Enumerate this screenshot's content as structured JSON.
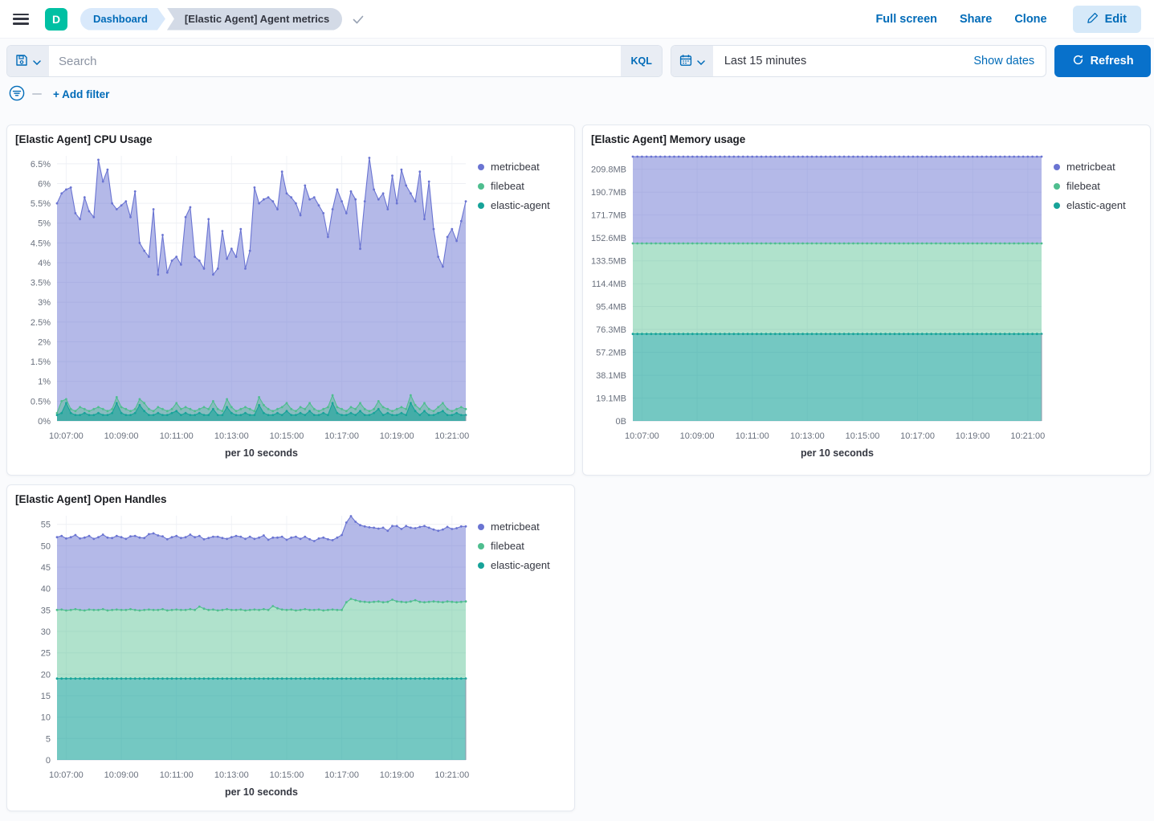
{
  "header": {
    "app_initial": "D",
    "breadcrumbs": [
      "Dashboard",
      "[Elastic Agent] Agent metrics"
    ],
    "actions": [
      "Full screen",
      "Share",
      "Clone"
    ],
    "edit_label": "Edit"
  },
  "query_bar": {
    "search_placeholder": "Search",
    "kql_label": "KQL",
    "time_range": "Last 15 minutes",
    "show_dates_label": "Show dates",
    "refresh_label": "Refresh"
  },
  "filter_bar": {
    "add_filter_label": "+ Add filter"
  },
  "colors": {
    "accent_blue": "#006bb8",
    "refresh_blue": "#0871cb",
    "avatar_teal": "#00c0a3",
    "metricbeat": "#6a74d2",
    "filebeat": "#4fbe8f",
    "elastic_agent": "#17a399"
  },
  "chart_data": [
    {
      "type": "area",
      "stacked": false,
      "title": "[Elastic Agent] CPU Usage",
      "xlabel": "per 10 seconds",
      "x_count": 90,
      "y_max": 6.7,
      "y_ticks": [
        {
          "v": 0,
          "label": "0%"
        },
        {
          "v": 0.5,
          "label": "0.5%"
        },
        {
          "v": 1,
          "label": "1%"
        },
        {
          "v": 1.5,
          "label": "1.5%"
        },
        {
          "v": 2,
          "label": "2%"
        },
        {
          "v": 2.5,
          "label": "2.5%"
        },
        {
          "v": 3,
          "label": "3%"
        },
        {
          "v": 3.5,
          "label": "3.5%"
        },
        {
          "v": 4,
          "label": "4%"
        },
        {
          "v": 4.5,
          "label": "4.5%"
        },
        {
          "v": 5,
          "label": "5%"
        },
        {
          "v": 5.5,
          "label": "5.5%"
        },
        {
          "v": 6,
          "label": "6%"
        },
        {
          "v": 6.5,
          "label": "6.5%"
        }
      ],
      "x_ticks": [
        {
          "i": 2,
          "label": "10:07:00"
        },
        {
          "i": 14,
          "label": "10:09:00"
        },
        {
          "i": 26,
          "label": "10:11:00"
        },
        {
          "i": 38,
          "label": "10:13:00"
        },
        {
          "i": 50,
          "label": "10:15:00"
        },
        {
          "i": 62,
          "label": "10:17:00"
        },
        {
          "i": 74,
          "label": "10:19:00"
        },
        {
          "i": 86,
          "label": "10:21:00"
        }
      ],
      "series": [
        {
          "name": "metricbeat",
          "color": "#6a74d2",
          "fill_opacity": 0.5,
          "values": [
            5.5,
            5.75,
            5.85,
            5.9,
            5.25,
            5.1,
            5.65,
            5.3,
            5.15,
            6.6,
            6.05,
            6.35,
            5.5,
            5.35,
            5.45,
            5.55,
            5.15,
            5.8,
            4.5,
            4.3,
            4.15,
            5.35,
            3.7,
            4.7,
            3.75,
            4.05,
            4.15,
            3.95,
            5.15,
            5.4,
            4.15,
            4.05,
            3.85,
            5.1,
            3.7,
            3.85,
            4.8,
            4.1,
            4.35,
            4.15,
            4.85,
            3.85,
            4.3,
            5.9,
            5.5,
            5.6,
            5.65,
            5.55,
            5.35,
            6.3,
            5.75,
            5.65,
            5.5,
            5.2,
            5.95,
            5.6,
            5.65,
            5.45,
            5.25,
            4.65,
            5.35,
            5.85,
            5.55,
            5.25,
            5.8,
            5.6,
            4.35,
            5.55,
            6.65,
            5.85,
            5.6,
            5.75,
            5.35,
            6.2,
            5.5,
            6.35,
            5.95,
            5.75,
            5.55,
            6.3,
            5.1,
            6.05,
            4.85,
            4.15,
            3.9,
            4.65,
            4.85,
            4.55,
            5.05,
            5.55
          ]
        },
        {
          "name": "filebeat",
          "color": "#4fbe8f",
          "fill_opacity": 0.45,
          "values": [
            0.2,
            0.5,
            0.55,
            0.3,
            0.25,
            0.35,
            0.3,
            0.25,
            0.3,
            0.35,
            0.3,
            0.25,
            0.3,
            0.6,
            0.35,
            0.3,
            0.25,
            0.3,
            0.55,
            0.45,
            0.3,
            0.25,
            0.35,
            0.3,
            0.25,
            0.3,
            0.45,
            0.3,
            0.35,
            0.3,
            0.25,
            0.3,
            0.35,
            0.3,
            0.5,
            0.3,
            0.25,
            0.55,
            0.35,
            0.25,
            0.3,
            0.35,
            0.3,
            0.25,
            0.6,
            0.4,
            0.3,
            0.25,
            0.3,
            0.35,
            0.45,
            0.3,
            0.25,
            0.35,
            0.3,
            0.45,
            0.3,
            0.25,
            0.3,
            0.35,
            0.65,
            0.35,
            0.3,
            0.25,
            0.35,
            0.3,
            0.45,
            0.3,
            0.25,
            0.3,
            0.5,
            0.35,
            0.3,
            0.25,
            0.3,
            0.35,
            0.3,
            0.65,
            0.4,
            0.3,
            0.45,
            0.3,
            0.25,
            0.35,
            0.45,
            0.3,
            0.25,
            0.3,
            0.35,
            0.3
          ]
        },
        {
          "name": "elastic-agent",
          "color": "#17a399",
          "fill_opacity": 0.6,
          "values": [
            0.15,
            0.2,
            0.45,
            0.2,
            0.15,
            0.15,
            0.2,
            0.15,
            0.15,
            0.2,
            0.15,
            0.15,
            0.2,
            0.45,
            0.2,
            0.15,
            0.15,
            0.2,
            0.4,
            0.25,
            0.15,
            0.15,
            0.2,
            0.15,
            0.15,
            0.2,
            0.25,
            0.15,
            0.2,
            0.15,
            0.15,
            0.2,
            0.15,
            0.15,
            0.3,
            0.15,
            0.15,
            0.35,
            0.2,
            0.15,
            0.15,
            0.2,
            0.15,
            0.15,
            0.4,
            0.2,
            0.15,
            0.15,
            0.2,
            0.15,
            0.25,
            0.15,
            0.15,
            0.2,
            0.15,
            0.25,
            0.15,
            0.15,
            0.2,
            0.15,
            0.45,
            0.2,
            0.15,
            0.15,
            0.2,
            0.15,
            0.25,
            0.15,
            0.15,
            0.2,
            0.3,
            0.15,
            0.2,
            0.15,
            0.15,
            0.2,
            0.15,
            0.45,
            0.25,
            0.15,
            0.25,
            0.15,
            0.15,
            0.2,
            0.25,
            0.15,
            0.15,
            0.2,
            0.15,
            0.15
          ]
        }
      ]
    },
    {
      "type": "area",
      "stacked": true,
      "title": "[Elastic Agent] Memory usage",
      "xlabel": "per 10 seconds",
      "x_count": 90,
      "y_max": 221,
      "y_ticks": [
        {
          "v": 0,
          "label": "0B"
        },
        {
          "v": 19.1,
          "label": "19.1MB"
        },
        {
          "v": 38.1,
          "label": "38.1MB"
        },
        {
          "v": 57.2,
          "label": "57.2MB"
        },
        {
          "v": 76.3,
          "label": "76.3MB"
        },
        {
          "v": 95.4,
          "label": "95.4MB"
        },
        {
          "v": 114.4,
          "label": "114.4MB"
        },
        {
          "v": 133.5,
          "label": "133.5MB"
        },
        {
          "v": 152.6,
          "label": "152.6MB"
        },
        {
          "v": 171.7,
          "label": "171.7MB"
        },
        {
          "v": 190.7,
          "label": "190.7MB"
        },
        {
          "v": 209.8,
          "label": "209.8MB"
        }
      ],
      "x_ticks": [
        {
          "i": 2,
          "label": "10:07:00"
        },
        {
          "i": 14,
          "label": "10:09:00"
        },
        {
          "i": 26,
          "label": "10:11:00"
        },
        {
          "i": 38,
          "label": "10:13:00"
        },
        {
          "i": 50,
          "label": "10:15:00"
        },
        {
          "i": 62,
          "label": "10:17:00"
        },
        {
          "i": 74,
          "label": "10:19:00"
        },
        {
          "i": 86,
          "label": "10:21:00"
        }
      ],
      "series": [
        {
          "name": "metricbeat",
          "color": "#6a74d2",
          "fill_opacity": 0.5,
          "values": 72.3
        },
        {
          "name": "filebeat",
          "color": "#4fbe8f",
          "fill_opacity": 0.45,
          "values": 75.5
        },
        {
          "name": "elastic-agent",
          "color": "#17a399",
          "fill_opacity": 0.6,
          "values": 72.5
        }
      ]
    },
    {
      "type": "area",
      "stacked": true,
      "title": "[Elastic Agent] Open Handles",
      "xlabel": "per 10 seconds",
      "x_count": 90,
      "y_max": 57,
      "y_ticks": [
        {
          "v": 0,
          "label": "0"
        },
        {
          "v": 5,
          "label": "5"
        },
        {
          "v": 10,
          "label": "10"
        },
        {
          "v": 15,
          "label": "15"
        },
        {
          "v": 20,
          "label": "20"
        },
        {
          "v": 25,
          "label": "25"
        },
        {
          "v": 30,
          "label": "30"
        },
        {
          "v": 35,
          "label": "35"
        },
        {
          "v": 40,
          "label": "40"
        },
        {
          "v": 45,
          "label": "45"
        },
        {
          "v": 50,
          "label": "50"
        },
        {
          "v": 55,
          "label": "55"
        }
      ],
      "x_ticks": [
        {
          "i": 2,
          "label": "10:07:00"
        },
        {
          "i": 14,
          "label": "10:09:00"
        },
        {
          "i": 26,
          "label": "10:11:00"
        },
        {
          "i": 38,
          "label": "10:13:00"
        },
        {
          "i": 50,
          "label": "10:15:00"
        },
        {
          "i": 62,
          "label": "10:17:00"
        },
        {
          "i": 74,
          "label": "10:19:00"
        },
        {
          "i": 86,
          "label": "10:21:00"
        }
      ],
      "series": [
        {
          "name": "metricbeat",
          "color": "#6a74d2",
          "fill_opacity": 0.5,
          "values": [
            17,
            17.2,
            16.8,
            17,
            17.3,
            16.7,
            17,
            17.2,
            16.6,
            17,
            17.4,
            17,
            16.8,
            17.2,
            17,
            16.6,
            17,
            17.3,
            17,
            16.8,
            17.6,
            17.9,
            17.4,
            17,
            16.6,
            17,
            17.2,
            16.8,
            17,
            17.4,
            17,
            16.5,
            16.2,
            16.8,
            17,
            17.2,
            16.8,
            16.4,
            17,
            17.3,
            17,
            16.7,
            17.1,
            16.5,
            16.9,
            17.2,
            16.4,
            16,
            16.5,
            17,
            16.4,
            16.8,
            17.2,
            16.6,
            16.9,
            16.5,
            16.1,
            16.6,
            17,
            16.5,
            16.2,
            16.9,
            17.5,
            18.6,
            19.3,
            18.3,
            17.8,
            17.6,
            17.5,
            17.3,
            17,
            17.4,
            16.6,
            17.2,
            17.6,
            17,
            17.8,
            17.2,
            16.8,
            17.5,
            17.8,
            17.3,
            16.8,
            16.6,
            17,
            17.4,
            17,
            17.3,
            17.6,
            17.5
          ]
        },
        {
          "name": "filebeat",
          "color": "#4fbe8f",
          "fill_opacity": 0.45,
          "values": [
            16,
            16.1,
            15.9,
            16,
            16.2,
            16,
            15.9,
            16.1,
            16,
            16,
            16.2,
            15.9,
            16,
            16.1,
            16,
            16,
            16.2,
            16,
            15.9,
            16,
            16.1,
            16,
            16,
            16.2,
            15.9,
            16,
            16.1,
            16,
            16,
            16.2,
            16,
            16.8,
            16.3,
            16,
            16.1,
            15.9,
            16,
            16.2,
            16,
            16,
            16.1,
            15.9,
            16,
            16.1,
            16,
            16.2,
            16,
            16.9,
            16.4,
            16.1,
            16,
            16.1,
            15.9,
            16,
            16.2,
            16,
            16,
            16.1,
            15.9,
            16,
            16.1,
            16,
            16,
            17.8,
            18.6,
            18.3,
            18,
            17.9,
            17.8,
            17.9,
            18,
            17.8,
            17.9,
            18.4,
            18,
            17.9,
            17.8,
            18,
            18.3,
            17.9,
            17.8,
            17.9,
            18,
            17.9,
            17.8,
            18,
            17.9,
            17.8,
            17.9,
            18
          ]
        },
        {
          "name": "elastic-agent",
          "color": "#17a399",
          "fill_opacity": 0.6,
          "values": 19
        }
      ]
    }
  ]
}
